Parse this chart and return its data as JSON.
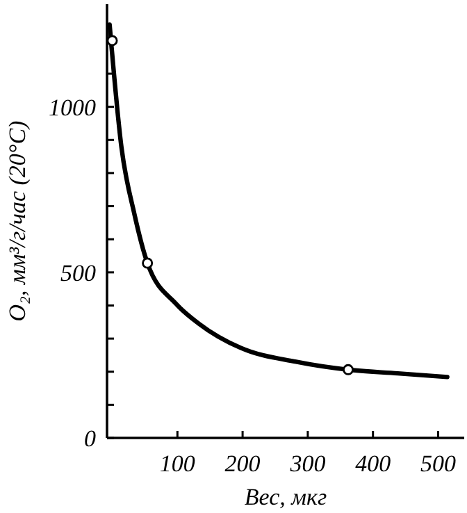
{
  "chart_data": {
    "type": "line",
    "xlabel": "Вес, мкг",
    "ylabel": "O₂, мм³/г/час (20°C)",
    "xlim": [
      -8,
      540
    ],
    "ylim": [
      0,
      1310
    ],
    "xticks": [
      100,
      200,
      300,
      400,
      500
    ],
    "yticks": [
      0,
      {
        "value": 100,
        "label": null
      },
      {
        "value": 200,
        "label": null
      },
      {
        "value": 300,
        "label": null
      },
      {
        "value": 400,
        "label": null
      },
      500,
      {
        "value": 600,
        "label": null
      },
      {
        "value": 700,
        "label": null
      },
      {
        "value": 800,
        "label": null
      },
      {
        "value": 900,
        "label": null
      },
      1000,
      {
        "value": 1100,
        "label": null
      },
      {
        "value": 1200,
        "label": null
      }
    ],
    "grid": false,
    "series": [
      {
        "color": "#000000",
        "marker": "none",
        "x": [
          -4,
          14,
          34,
          54,
          98,
          133,
          197,
          282,
          362,
          438,
          514
        ],
        "values": [
          1248,
          880,
          676,
          528,
          405,
          345,
          272,
          230,
          206,
          195,
          184
        ]
      },
      {
        "type": "scatter",
        "color": "#000000",
        "marker": "circle",
        "x": [
          0,
          54,
          362
        ],
        "values": [
          1200,
          528,
          206
        ]
      }
    ]
  }
}
